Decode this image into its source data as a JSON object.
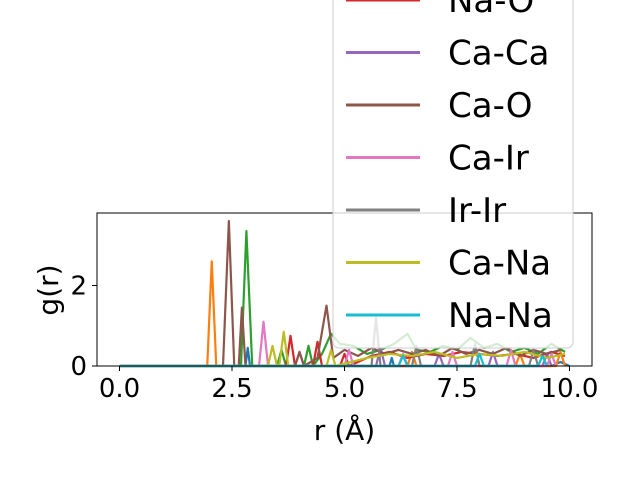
{
  "chart_data": {
    "type": "line",
    "xlabel": "r (Å)",
    "ylabel": "g(r)",
    "xlim": [
      -0.5,
      10.5
    ],
    "ylim": [
      0,
      3.8
    ],
    "xticks": [
      0.0,
      2.5,
      5.0,
      7.5,
      10.0
    ],
    "xtick_labels": [
      "0.0",
      "2.5",
      "5.0",
      "7.5",
      "10.0"
    ],
    "yticks": [
      0,
      2
    ],
    "ytick_labels": [
      "0",
      "2"
    ],
    "legend_position": "top-right",
    "series": [
      {
        "color": "#1f77b4",
        "points": [
          [
            0,
            0
          ],
          [
            2.8,
            0
          ],
          [
            2.85,
            0.45
          ],
          [
            2.9,
            0
          ],
          [
            6,
            0
          ],
          [
            6.05,
            0.2
          ],
          [
            6.1,
            0
          ],
          [
            9.6,
            0
          ],
          [
            9.8,
            0.1
          ],
          [
            10,
            0
          ]
        ]
      },
      {
        "color": "#ff7f0e",
        "points": [
          [
            0,
            0
          ],
          [
            1.95,
            0
          ],
          [
            2.05,
            2.6
          ],
          [
            2.15,
            0
          ],
          [
            6.4,
            0
          ],
          [
            6.5,
            0.35
          ],
          [
            6.6,
            0
          ],
          [
            8.8,
            0
          ],
          [
            8.9,
            0.3
          ],
          [
            9.0,
            0
          ],
          [
            9.7,
            0
          ],
          [
            9.8,
            0.35
          ],
          [
            9.9,
            0
          ]
        ]
      },
      {
        "color": "#2ca02c",
        "points": [
          [
            0,
            0
          ],
          [
            2.7,
            0
          ],
          [
            2.82,
            3.35
          ],
          [
            2.95,
            0
          ],
          [
            3.5,
            0
          ],
          [
            3.6,
            0.4
          ],
          [
            3.7,
            0
          ],
          [
            4.1,
            0
          ],
          [
            4.2,
            0.5
          ],
          [
            4.3,
            0
          ],
          [
            4.5,
            0.3
          ],
          [
            4.7,
            0.8
          ],
          [
            4.9,
            0.55
          ],
          [
            5.2,
            0.5
          ],
          [
            5.5,
            0.3
          ],
          [
            5.8,
            0.4
          ],
          [
            6.1,
            0.55
          ],
          [
            6.4,
            0.8
          ],
          [
            6.6,
            0.4
          ],
          [
            6.9,
            0.35
          ],
          [
            7.2,
            0.5
          ],
          [
            7.5,
            0.4
          ],
          [
            7.8,
            0.7
          ],
          [
            8.1,
            0.45
          ],
          [
            8.4,
            0.55
          ],
          [
            8.7,
            0.35
          ],
          [
            9.0,
            0.45
          ],
          [
            9.3,
            0.3
          ],
          [
            9.6,
            0.55
          ],
          [
            9.9,
            0.35
          ]
        ]
      },
      {
        "color": "#d62728",
        "points": [
          [
            0,
            0
          ],
          [
            3.7,
            0
          ],
          [
            3.8,
            0.75
          ],
          [
            3.9,
            0
          ],
          [
            4.3,
            0
          ],
          [
            4.4,
            0.6
          ],
          [
            4.5,
            0
          ],
          [
            4.9,
            0
          ],
          [
            5.0,
            0.3
          ],
          [
            5.1,
            0
          ],
          [
            5.6,
            0.25
          ],
          [
            6.0,
            0.35
          ],
          [
            6.4,
            0.2
          ],
          [
            6.8,
            0.3
          ],
          [
            7.2,
            0.25
          ],
          [
            7.6,
            0.35
          ],
          [
            8.0,
            0.3
          ],
          [
            8.4,
            0.25
          ],
          [
            8.8,
            0.3
          ],
          [
            9.2,
            0.2
          ],
          [
            9.6,
            0.35
          ],
          [
            9.9,
            0.25
          ]
        ]
      },
      {
        "color": "#9467bd",
        "points": [
          [
            0,
            0
          ],
          [
            3.9,
            0
          ],
          [
            4.0,
            0.35
          ],
          [
            4.1,
            0
          ],
          [
            5.7,
            0
          ],
          [
            5.8,
            0.45
          ],
          [
            5.9,
            0
          ],
          [
            7.0,
            0
          ],
          [
            7.1,
            0.3
          ],
          [
            7.2,
            0
          ],
          [
            8.2,
            0
          ],
          [
            8.3,
            0.35
          ],
          [
            8.4,
            0
          ],
          [
            9.4,
            0
          ],
          [
            9.5,
            0.3
          ],
          [
            9.6,
            0
          ]
        ]
      },
      {
        "color": "#8c564b",
        "points": [
          [
            0,
            0
          ],
          [
            2.3,
            0
          ],
          [
            2.43,
            3.6
          ],
          [
            2.55,
            0
          ],
          [
            2.65,
            0
          ],
          [
            2.72,
            1.45
          ],
          [
            2.8,
            0
          ],
          [
            3.9,
            0
          ],
          [
            4.0,
            0.35
          ],
          [
            4.1,
            0
          ],
          [
            4.4,
            0.2
          ],
          [
            4.6,
            1.5
          ],
          [
            4.75,
            0.2
          ],
          [
            5.0,
            0.4
          ],
          [
            5.3,
            0.25
          ],
          [
            5.6,
            0.45
          ],
          [
            5.9,
            0.3
          ],
          [
            6.2,
            0.4
          ],
          [
            6.5,
            0.3
          ],
          [
            6.8,
            0.4
          ],
          [
            7.1,
            0.25
          ],
          [
            7.4,
            0.45
          ],
          [
            7.7,
            0.3
          ],
          [
            8.0,
            0.4
          ],
          [
            8.3,
            0.3
          ],
          [
            8.6,
            0.45
          ],
          [
            8.9,
            0.25
          ],
          [
            9.2,
            0.4
          ],
          [
            9.5,
            0.3
          ],
          [
            9.8,
            0.4
          ]
        ]
      },
      {
        "color": "#e377c2",
        "points": [
          [
            0,
            0
          ],
          [
            3.1,
            0
          ],
          [
            3.2,
            1.1
          ],
          [
            3.3,
            0
          ],
          [
            5.0,
            0
          ],
          [
            5.1,
            0.4
          ],
          [
            5.2,
            0
          ],
          [
            6.2,
            0
          ],
          [
            6.3,
            0.3
          ],
          [
            6.4,
            0
          ],
          [
            7.3,
            0
          ],
          [
            7.4,
            0.35
          ],
          [
            7.5,
            0
          ],
          [
            8.6,
            0
          ],
          [
            8.7,
            0.4
          ],
          [
            8.8,
            0
          ],
          [
            9.5,
            0
          ],
          [
            9.6,
            0.3
          ],
          [
            9.7,
            0
          ]
        ]
      },
      {
        "color": "#7f7f7f",
        "points": [
          [
            0,
            0
          ],
          [
            5.6,
            0
          ],
          [
            5.7,
            1.2
          ],
          [
            5.8,
            0
          ],
          [
            6.5,
            0
          ],
          [
            6.6,
            0.5
          ],
          [
            6.7,
            0
          ],
          [
            7.8,
            0
          ],
          [
            7.9,
            0.55
          ],
          [
            8.0,
            0
          ],
          [
            9.1,
            0
          ],
          [
            9.2,
            0.4
          ],
          [
            9.3,
            0
          ]
        ]
      },
      {
        "color": "#bcbd22",
        "points": [
          [
            0,
            0
          ],
          [
            3.3,
            0
          ],
          [
            3.4,
            0.5
          ],
          [
            3.5,
            0
          ],
          [
            3.55,
            0
          ],
          [
            3.65,
            0.85
          ],
          [
            3.75,
            0
          ],
          [
            4.6,
            0
          ],
          [
            4.7,
            0.4
          ],
          [
            4.8,
            0
          ],
          [
            5.5,
            0.2
          ],
          [
            6.0,
            0.3
          ],
          [
            6.5,
            0.25
          ],
          [
            7.0,
            0.35
          ],
          [
            7.5,
            0.2
          ],
          [
            8.0,
            0.3
          ],
          [
            8.5,
            0.25
          ],
          [
            9.0,
            0.35
          ],
          [
            9.5,
            0.2
          ],
          [
            9.9,
            0.3
          ]
        ]
      },
      {
        "color": "#17becf",
        "points": [
          [
            0,
            0
          ],
          [
            6.2,
            0
          ],
          [
            6.3,
            0.25
          ],
          [
            6.4,
            0
          ],
          [
            7.9,
            0
          ],
          [
            8.0,
            0.3
          ],
          [
            8.1,
            0
          ],
          [
            9.3,
            0
          ],
          [
            9.4,
            0.25
          ],
          [
            9.5,
            0
          ]
        ]
      }
    ],
    "legend": [
      {
        "label": "Na-O",
        "color": "#d62728"
      },
      {
        "label": "Ca-Ca",
        "color": "#9467bd"
      },
      {
        "label": "Ca-O",
        "color": "#8c564b"
      },
      {
        "label": "Ca-Ir",
        "color": "#e377c2"
      },
      {
        "label": "Ir-Ir",
        "color": "#7f7f7f"
      },
      {
        "label": "Ca-Na",
        "color": "#bcbd22"
      },
      {
        "label": "Na-Na",
        "color": "#17becf"
      }
    ]
  }
}
